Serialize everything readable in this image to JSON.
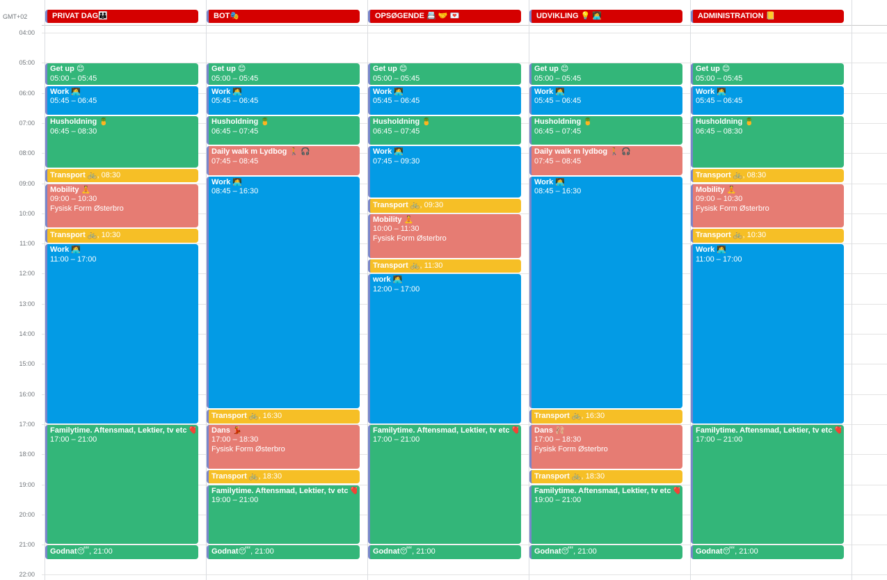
{
  "timezone": "GMT+02",
  "hours": [
    "04:00",
    "05:00",
    "06:00",
    "07:00",
    "08:00",
    "09:00",
    "10:00",
    "11:00",
    "12:00",
    "13:00",
    "14:00",
    "15:00",
    "16:00",
    "17:00",
    "18:00",
    "19:00",
    "20:00",
    "21:00",
    "22:00"
  ],
  "first_hour": 4,
  "colors": {
    "header": "#d50000",
    "green": "#33b679",
    "blue": "#039be5",
    "salmon": "#e67c73",
    "yellow": "#f6bf26",
    "accent": "#7986cb"
  },
  "columns": [
    {
      "title": "PRIVAT DAG👪",
      "events": [
        {
          "title": "Get up 😊",
          "time": "05:00 – 05:45",
          "start": "05:00",
          "end": "05:45",
          "color": "green"
        },
        {
          "title": "Work 👩‍💻",
          "time": "05:45 – 06:45",
          "start": "05:45",
          "end": "06:45",
          "color": "blue"
        },
        {
          "title": "Husholdning 🍍",
          "time": "06:45 – 08:30",
          "start": "06:45",
          "end": "08:30",
          "color": "green"
        },
        {
          "title": "Transport 🚲",
          "time": ", 08:30",
          "start": "08:30",
          "end": "09:00",
          "color": "yellow",
          "short": true
        },
        {
          "title": "Mobility 🧘",
          "time": "09:00 – 10:30",
          "location": "Fysisk Form Østerbro",
          "start": "09:00",
          "end": "10:30",
          "color": "salmon"
        },
        {
          "title": "Transport 🚲",
          "time": ", 10:30",
          "start": "10:30",
          "end": "11:00",
          "color": "yellow",
          "short": true
        },
        {
          "title": "Work 👩‍💻",
          "time": "11:00 – 17:00",
          "start": "11:00",
          "end": "17:00",
          "color": "blue"
        },
        {
          "title": "Familytime. Aftensmad, Lektier, tv etc ❤️",
          "time": "17:00 – 21:00",
          "start": "17:00",
          "end": "21:00",
          "color": "green"
        },
        {
          "title": "Godnat😴",
          "time": ", 21:00",
          "start": "21:00",
          "end": "21:30",
          "color": "green",
          "short": true
        }
      ]
    },
    {
      "title": "BOT🎭",
      "events": [
        {
          "title": "Get up 😊",
          "time": "05:00 – 05:45",
          "start": "05:00",
          "end": "05:45",
          "color": "green"
        },
        {
          "title": "Work 👩‍💻",
          "time": "05:45 – 06:45",
          "start": "05:45",
          "end": "06:45",
          "color": "blue"
        },
        {
          "title": "Husholdning 🍍",
          "time": "06:45 – 07:45",
          "start": "06:45",
          "end": "07:45",
          "color": "green"
        },
        {
          "title": "Daily walk m Lydbog 🚶 🎧",
          "time": "07:45 – 08:45",
          "start": "07:45",
          "end": "08:45",
          "color": "salmon"
        },
        {
          "title": "Work 👩‍💻",
          "time": "08:45 – 16:30",
          "start": "08:45",
          "end": "16:30",
          "color": "blue"
        },
        {
          "title": "Transport 🚲",
          "time": ", 16:30",
          "start": "16:30",
          "end": "17:00",
          "color": "yellow",
          "short": true
        },
        {
          "title": "Dans 💃",
          "time": "17:00 – 18:30",
          "location": "Fysisk Form Østerbro",
          "start": "17:00",
          "end": "18:30",
          "color": "salmon"
        },
        {
          "title": "Transport 🚲",
          "time": ", 18:30",
          "start": "18:30",
          "end": "19:00",
          "color": "yellow",
          "short": true
        },
        {
          "title": "Familytime. Aftensmad, Lektier, tv etc ❤️",
          "time": "19:00 – 21:00",
          "start": "19:00",
          "end": "21:00",
          "color": "green"
        },
        {
          "title": "Godnat😴",
          "time": ", 21:00",
          "start": "21:00",
          "end": "21:30",
          "color": "green",
          "short": true
        }
      ]
    },
    {
      "title": "OPSØGENDE 📇 🤝 💌",
      "events": [
        {
          "title": "Get up 😊",
          "time": "05:00 – 05:45",
          "start": "05:00",
          "end": "05:45",
          "color": "green"
        },
        {
          "title": "Work 👩‍💻",
          "time": "05:45 – 06:45",
          "start": "05:45",
          "end": "06:45",
          "color": "blue"
        },
        {
          "title": "Husholdning 🍍",
          "time": "06:45 – 07:45",
          "start": "06:45",
          "end": "07:45",
          "color": "green"
        },
        {
          "title": "Work 👩‍💻",
          "time": "07:45 – 09:30",
          "start": "07:45",
          "end": "09:30",
          "color": "blue"
        },
        {
          "title": "Transport 🚲",
          "time": ", 09:30",
          "start": "09:30",
          "end": "10:00",
          "color": "yellow",
          "short": true
        },
        {
          "title": "Mobility 🧘",
          "time": "10:00 – 11:30",
          "location": "Fysisk Form Østerbro",
          "start": "10:00",
          "end": "11:30",
          "color": "salmon"
        },
        {
          "title": "Transport 🚲",
          "time": ", 11:30",
          "start": "11:30",
          "end": "12:00",
          "color": "yellow",
          "short": true
        },
        {
          "title": "work 👩‍💻",
          "time": "12:00 – 17:00",
          "start": "12:00",
          "end": "17:00",
          "color": "blue"
        },
        {
          "title": "Familytime. Aftensmad, Lektier, tv etc ❤️",
          "time": "17:00 – 21:00",
          "start": "17:00",
          "end": "21:00",
          "color": "green"
        },
        {
          "title": "Godnat😴",
          "time": ", 21:00",
          "start": "21:00",
          "end": "21:30",
          "color": "green",
          "short": true
        }
      ]
    },
    {
      "title": "UDVIKLING 💡 👩‍💻",
      "events": [
        {
          "title": "Get up 😊",
          "time": "05:00 – 05:45",
          "start": "05:00",
          "end": "05:45",
          "color": "green"
        },
        {
          "title": "Work 👩‍💻",
          "time": "05:45 – 06:45",
          "start": "05:45",
          "end": "06:45",
          "color": "blue"
        },
        {
          "title": "Husholdning 🍍",
          "time": "06:45 – 07:45",
          "start": "06:45",
          "end": "07:45",
          "color": "green"
        },
        {
          "title": "Daily walk m lydbog 🚶 🎧",
          "time": "07:45 – 08:45",
          "start": "07:45",
          "end": "08:45",
          "color": "salmon"
        },
        {
          "title": "Work 👩‍💻",
          "time": "08:45 – 16:30",
          "start": "08:45",
          "end": "16:30",
          "color": "blue"
        },
        {
          "title": "Transport 🚲",
          "time": ", 16:30",
          "start": "16:30",
          "end": "17:00",
          "color": "yellow",
          "short": true
        },
        {
          "title": "Dans 🩰",
          "time": "17:00 – 18:30",
          "location": "Fysisk Form Østerbro",
          "start": "17:00",
          "end": "18:30",
          "color": "salmon"
        },
        {
          "title": "Transport 🚲",
          "time": ", 18:30",
          "start": "18:30",
          "end": "19:00",
          "color": "yellow",
          "short": true
        },
        {
          "title": "Familytime. Aftensmad, Lektier, tv etc ❤️",
          "time": "19:00 – 21:00",
          "start": "19:00",
          "end": "21:00",
          "color": "green"
        },
        {
          "title": "Godnat😴",
          "time": ", 21:00",
          "start": "21:00",
          "end": "21:30",
          "color": "green",
          "short": true
        }
      ]
    },
    {
      "title": "ADMINISTRATION 📒",
      "events": [
        {
          "title": "Get up 😊",
          "time": "05:00 – 05:45",
          "start": "05:00",
          "end": "05:45",
          "color": "green"
        },
        {
          "title": "Work 👩‍💻",
          "time": "05:45 – 06:45",
          "start": "05:45",
          "end": "06:45",
          "color": "blue"
        },
        {
          "title": "Husholdning 🍍",
          "time": "06:45 – 08:30",
          "start": "06:45",
          "end": "08:30",
          "color": "green"
        },
        {
          "title": "Transport 🚲",
          "time": ", 08:30",
          "start": "08:30",
          "end": "09:00",
          "color": "yellow",
          "short": true
        },
        {
          "title": "Mobility 🧘",
          "time": "09:00 – 10:30",
          "location": "Fysisk Form Østerbro",
          "start": "09:00",
          "end": "10:30",
          "color": "salmon"
        },
        {
          "title": "Transport 🚲",
          "time": ", 10:30",
          "start": "10:30",
          "end": "11:00",
          "color": "yellow",
          "short": true
        },
        {
          "title": "Work 👩‍💻",
          "time": "11:00 – 17:00",
          "start": "11:00",
          "end": "17:00",
          "color": "blue"
        },
        {
          "title": "Familytime. Aftensmad, Lektier, tv etc ❤️",
          "time": "17:00 – 21:00",
          "start": "17:00",
          "end": "21:00",
          "color": "green"
        },
        {
          "title": "Godnat😴",
          "time": ", 21:00",
          "start": "21:00",
          "end": "21:30",
          "color": "green",
          "short": true
        }
      ]
    }
  ]
}
